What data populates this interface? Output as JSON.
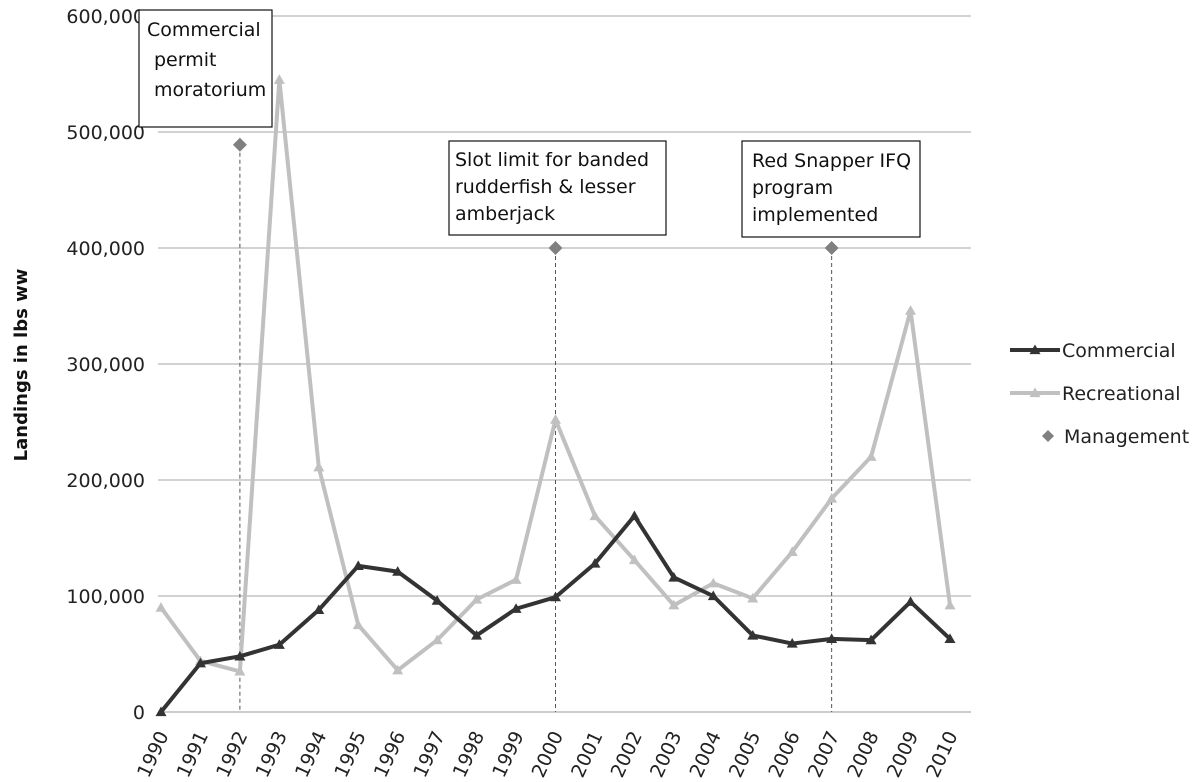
{
  "chart_data": {
    "type": "line",
    "title": "",
    "xlabel": "",
    "ylabel": "Landings in lbs ww",
    "ylim": [
      0,
      600000
    ],
    "y_ticks": [
      "0",
      "100,000",
      "200,000",
      "300,000",
      "400,000",
      "500,000",
      "600,000"
    ],
    "y_tick_values": [
      0,
      100000,
      200000,
      300000,
      400000,
      500000,
      600000
    ],
    "categories": [
      "1990",
      "1991",
      "1992",
      "1993",
      "1994",
      "1995",
      "1996",
      "1997",
      "1998",
      "1999",
      "2000",
      "2001",
      "2002",
      "2003",
      "2004",
      "2005",
      "2006",
      "2007",
      "2008",
      "2009",
      "2010"
    ],
    "grid": true,
    "legend_position": "right",
    "series": [
      {
        "name": "Commercial",
        "color": "#333333",
        "marker": "triangle",
        "values": [
          0,
          42000,
          48000,
          58000,
          88000,
          126000,
          121000,
          96000,
          66000,
          89000,
          99000,
          128000,
          169000,
          116000,
          100000,
          66000,
          59000,
          63000,
          62000,
          95000,
          63000
        ]
      },
      {
        "name": "Recreational",
        "color": "#c0c0c0",
        "marker": "triangle",
        "values": [
          90000,
          44000,
          35000,
          545000,
          211000,
          75000,
          36000,
          62000,
          97000,
          114000,
          252000,
          169000,
          131000,
          92000,
          111000,
          98000,
          138000,
          184000,
          220000,
          346000,
          92000
        ]
      },
      {
        "name": "Management",
        "color": "#808080",
        "marker": "diamond",
        "points": [
          {
            "x": "1992",
            "y": 489000
          },
          {
            "x": "2000",
            "y": 400000
          },
          {
            "x": "2007",
            "y": 400000
          }
        ]
      }
    ],
    "annotations": [
      {
        "x": "1992",
        "lines": [
          "Commercial",
          "permit",
          "moratorium"
        ]
      },
      {
        "x": "2000",
        "lines": [
          "Slot limit for banded",
          "rudderfish & lesser",
          "amberjack"
        ]
      },
      {
        "x": "2007",
        "lines": [
          "Red Snapper IFQ",
          "program",
          "implemented"
        ]
      }
    ]
  }
}
